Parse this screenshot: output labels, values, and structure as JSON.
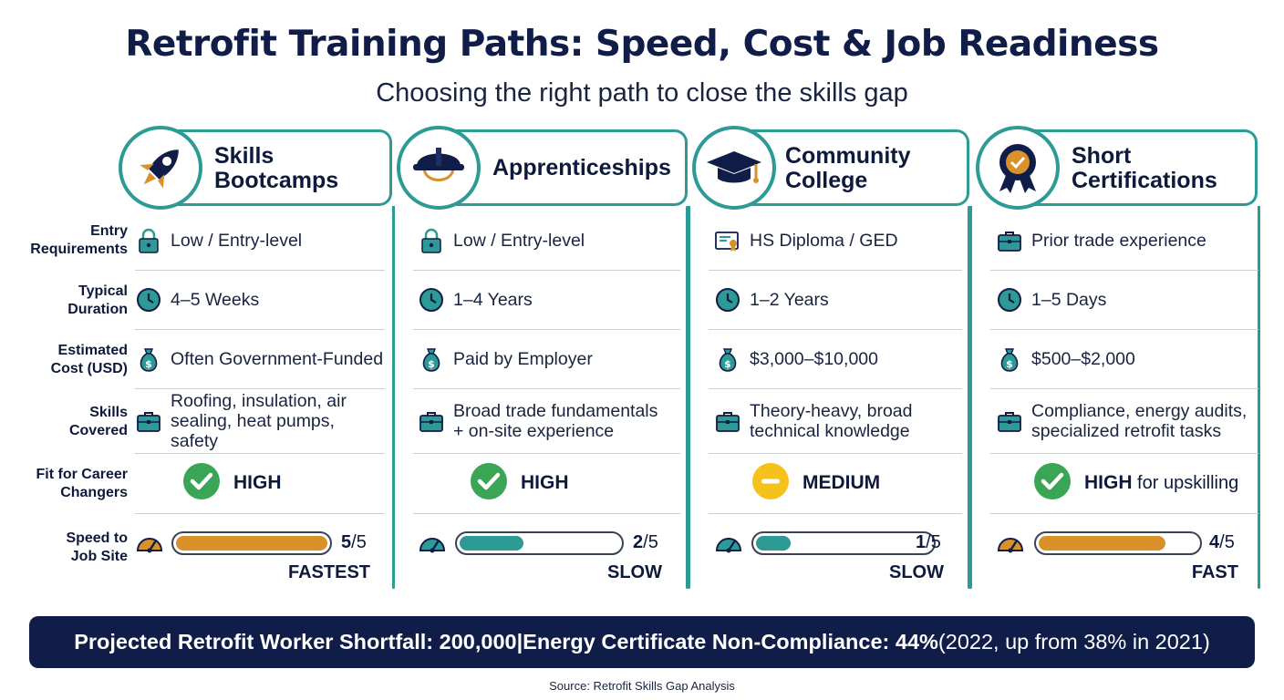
{
  "title": "Retrofit Training Paths: Speed, Cost & Job Readiness",
  "subtitle": "Choosing the right path to close the skills gap",
  "row_labels": {
    "entry": [
      "Entry",
      "Requirements"
    ],
    "duration": [
      "Typical",
      "Duration"
    ],
    "cost": [
      "Estimated",
      "Cost (USD)"
    ],
    "skills": [
      "Skills",
      "Covered"
    ],
    "fit": [
      "Fit for Career",
      "Changers"
    ],
    "speed": [
      "Speed to",
      "Job Site"
    ]
  },
  "columns": [
    {
      "title": [
        "Skills",
        "Bootcamps"
      ],
      "icon": "rocket-icon",
      "entry": "Low / Entry-level",
      "entry_icon": "lock-icon",
      "duration": "4–5 Weeks",
      "cost": "Often Government-Funded",
      "skills": [
        "Roofing, insulation, air",
        "sealing, heat pumps, safety"
      ],
      "fit": "HIGH",
      "fit_extra": "",
      "fit_status": "check",
      "speed_score": 5,
      "speed_max": 5,
      "speed_label": "FASTEST",
      "speed_color": "#d9922a"
    },
    {
      "title": [
        "Apprenticeships"
      ],
      "icon": "hard-hat-icon",
      "entry": "Low / Entry-level",
      "entry_icon": "lock-icon",
      "duration": "1–4 Years",
      "cost": "Paid by Employer",
      "skills": [
        "Broad trade fundamentals",
        "+ on-site experience"
      ],
      "fit": "HIGH",
      "fit_extra": "",
      "fit_status": "check",
      "speed_score": 2,
      "speed_max": 5,
      "speed_label": "SLOW",
      "speed_color": "#2d9a96"
    },
    {
      "title": [
        "Community",
        "College"
      ],
      "icon": "graduation-cap-icon",
      "entry": "HS Diploma / GED",
      "entry_icon": "certificate-icon",
      "duration": "1–2 Years",
      "cost": "$3,000–$10,000",
      "skills": [
        "Theory-heavy, broad",
        "technical knowledge"
      ],
      "fit": "MEDIUM",
      "fit_extra": "",
      "fit_status": "minus",
      "speed_score": 1,
      "speed_max": 5,
      "speed_label": "SLOW",
      "speed_color": "#2d9a96"
    },
    {
      "title": [
        "Short",
        "Certifications"
      ],
      "icon": "award-ribbon-icon",
      "entry": "Prior trade experience",
      "entry_icon": "briefcase-icon",
      "duration": "1–5 Days",
      "cost": "$500–$2,000",
      "skills": [
        "Compliance, energy audits,",
        "specialized retrofit tasks"
      ],
      "fit": "HIGH",
      "fit_extra": " for upskilling",
      "fit_status": "check",
      "speed_score": 4,
      "speed_max": 5,
      "speed_label": "FAST",
      "speed_color": "#d9922a"
    }
  ],
  "colors": {
    "navy": "#0f1d48",
    "teal": "#2d9a96",
    "orange": "#d9922a",
    "green": "#3aa655",
    "yellow": "#f5c21b"
  },
  "footer": {
    "part1": "Projected Retrofit Worker Shortfall: 200,000",
    "sep": " | ",
    "part2": "Energy Certificate Non-Compliance: 44%",
    "part3": " (2022, up from 38% in 2021)"
  },
  "source": "Source: Retrofit Skills Gap Analysis"
}
